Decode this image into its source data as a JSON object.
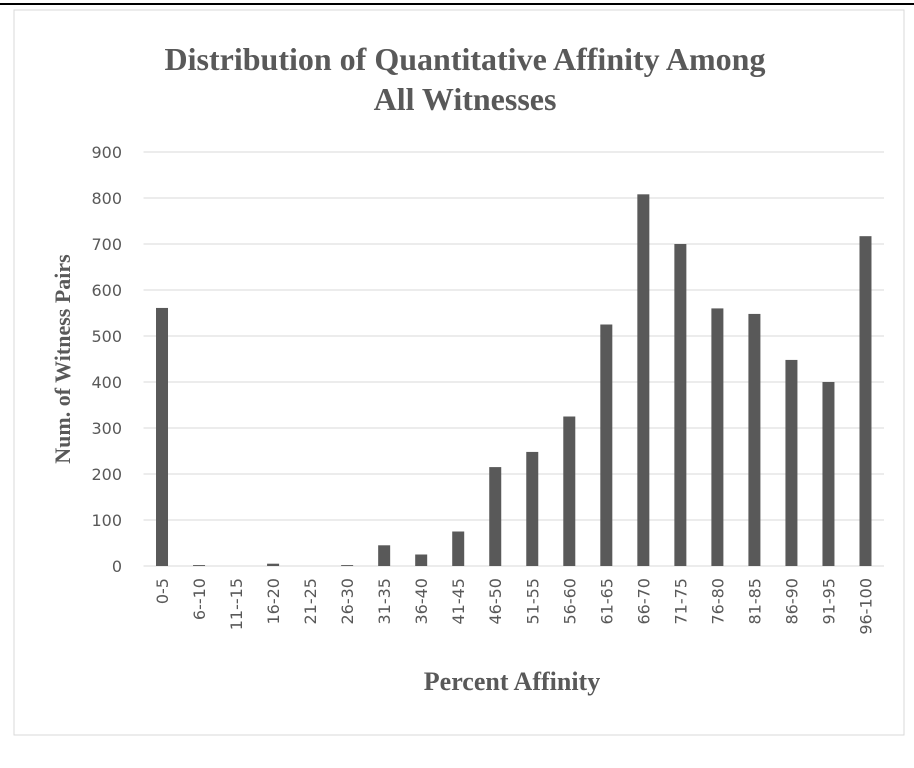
{
  "chart_data": {
    "type": "bar",
    "title": "Distribution of Quantitative Affinity Among All Witnesses",
    "x_label": "Percent Affinity",
    "y_label": "Num. of Witness Pairs",
    "categories": [
      "0-5",
      "6--10",
      "11--15",
      "16-20",
      "21-25",
      "26-30",
      "31-35",
      "36-40",
      "41-45",
      "46-50",
      "51-55",
      "56-60",
      "61-65",
      "66-70",
      "71-75",
      "76-80",
      "81-85",
      "86-90",
      "91-95",
      "96-100"
    ],
    "values": [
      561,
      2,
      0,
      5,
      0,
      2,
      45,
      25,
      75,
      215,
      248,
      325,
      525,
      808,
      700,
      560,
      548,
      448,
      400,
      717
    ],
    "color": "#595959",
    "ylim": [
      0,
      900
    ],
    "yticks": [
      0,
      100,
      200,
      300,
      400,
      500,
      600,
      700,
      800,
      900
    ],
    "grid": true
  }
}
